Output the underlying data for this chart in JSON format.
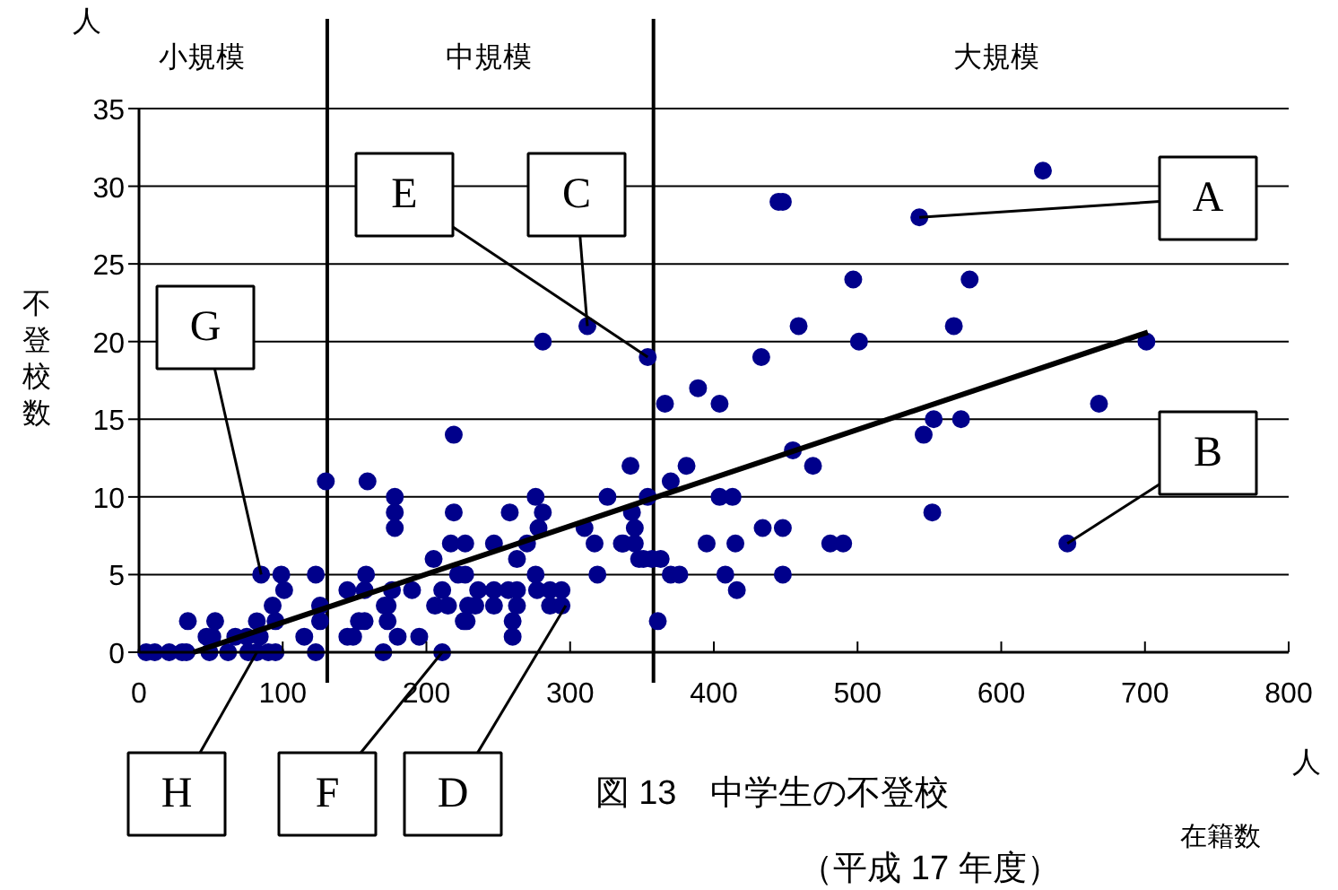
{
  "chart_data": {
    "type": "scatter",
    "title": "図 13　中学生の不登校",
    "subtitle": "（平成 17 年度）",
    "xlabel": "在籍数",
    "ylabel": "不登校数",
    "xlim": [
      0,
      800
    ],
    "ylim": [
      0,
      35
    ],
    "xticks": [
      0,
      100,
      200,
      300,
      400,
      500,
      600,
      700,
      800
    ],
    "yticks": [
      0,
      5,
      10,
      15,
      20,
      25,
      30,
      35
    ],
    "grid": "y",
    "marker": "circle",
    "series": [
      {
        "color": "#00008b",
        "x": [
          5,
          11,
          21,
          30,
          33,
          34,
          47,
          49,
          51,
          53,
          62,
          67,
          75,
          76,
          82,
          84,
          82,
          85,
          90,
          93,
          95,
          95,
          99,
          101,
          115,
          123,
          123,
          126,
          126,
          130,
          145,
          145,
          149,
          153,
          157,
          158,
          159,
          157,
          170,
          171,
          173,
          173,
          176,
          178,
          178,
          178,
          180,
          190,
          195,
          205,
          206,
          211,
          211,
          215,
          217,
          219,
          219,
          222,
          226,
          227,
          227,
          228,
          229,
          234,
          236,
          247,
          247,
          247,
          257,
          258,
          260,
          260,
          263,
          263,
          263,
          270,
          276,
          276,
          277,
          278,
          281,
          281,
          286,
          286,
          294,
          294,
          312,
          310,
          317,
          319,
          326,
          336,
          337,
          342,
          343,
          345,
          345,
          348,
          351,
          354,
          354,
          357,
          361,
          363,
          366,
          370,
          370,
          376,
          381,
          389,
          395,
          404,
          404,
          408,
          413,
          415,
          416,
          433,
          434,
          445,
          448,
          448,
          448,
          455,
          459,
          469,
          481,
          490,
          497,
          501,
          543,
          546,
          552,
          553,
          567,
          572,
          578,
          629,
          646,
          668,
          701
        ],
        "values": [
          0,
          0,
          0,
          0,
          0,
          2,
          1,
          0,
          1,
          2,
          0,
          1,
          1,
          0,
          0,
          1,
          2,
          5,
          0,
          3,
          0,
          2,
          5,
          4,
          1,
          5,
          0,
          3,
          2,
          11,
          4,
          1,
          1,
          2,
          4,
          5,
          11,
          2,
          0,
          3,
          3,
          2,
          4,
          10,
          9,
          8,
          1,
          4,
          1,
          6,
          3,
          0,
          4,
          3,
          7,
          14,
          9,
          5,
          2,
          5,
          7,
          2,
          3,
          3,
          4,
          7,
          4,
          3,
          4,
          9,
          2,
          1,
          6,
          4,
          3,
          7,
          10,
          5,
          4,
          8,
          9,
          20,
          4,
          3,
          4,
          3,
          21,
          8,
          7,
          5,
          10,
          7,
          7,
          12,
          9,
          8,
          7,
          6,
          6,
          19,
          10,
          6,
          2,
          6,
          16,
          11,
          5,
          5,
          12,
          17,
          7,
          16,
          10,
          5,
          10,
          7,
          4,
          19,
          8,
          29,
          29,
          8,
          5,
          13,
          21,
          12,
          7,
          7,
          24,
          20,
          28,
          14,
          9,
          15,
          21,
          15,
          24,
          31,
          7,
          16,
          20
        ]
      },
      {
        "type": "line",
        "marker": "none",
        "color": "#000000",
        "x": [
          38,
          702
        ],
        "values": [
          0,
          20.6
        ]
      }
    ],
    "ref_lines": [
      {
        "axis": "x",
        "value": 131
      },
      {
        "axis": "x",
        "value": 358
      }
    ],
    "annotations": [
      {
        "text": "A",
        "x": 543,
        "y": 28
      },
      {
        "text": "B",
        "x": 646,
        "y": 7
      },
      {
        "text": "C",
        "x": 312,
        "y": 21
      },
      {
        "text": "E",
        "x": 354,
        "y": 19
      },
      {
        "text": "G",
        "x": 85,
        "y": 5
      },
      {
        "text": "H",
        "x": 82,
        "y": 0
      },
      {
        "text": "F",
        "x": 211,
        "y": 0
      },
      {
        "text": "D",
        "x": 297,
        "y": 3
      },
      "人",
      "人",
      "小規模",
      "中規模",
      "大規模"
    ]
  }
}
